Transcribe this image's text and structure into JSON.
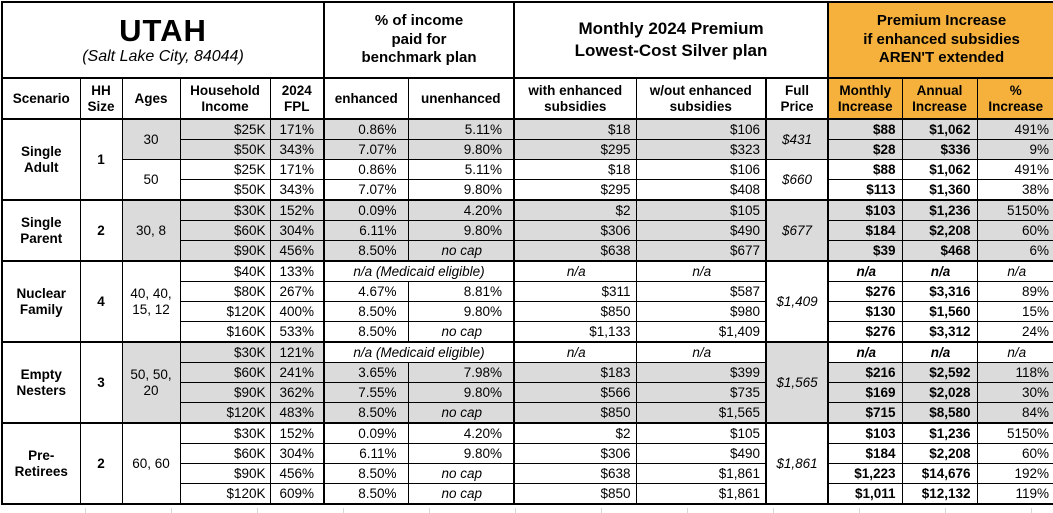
{
  "colors": {
    "orange": "#F6B13C",
    "shade": "#DBDBDB",
    "border": "#000000"
  },
  "title_block": {
    "title": "UTAH",
    "subtitle": "(Salt Lake City, 84044)"
  },
  "section_headers": {
    "income_pct": "% of income\npaid for\nbenchmark plan",
    "premium": "Monthly 2024 Premium\nLowest-Cost Silver plan",
    "increase": "Premium Increase\nif enhanced subsidies\nAREN'T extended"
  },
  "column_headers": {
    "scenario": "Scenario",
    "hh_size": "HH\nSize",
    "ages": "Ages",
    "income": "Household\nIncome",
    "fpl": "2024\nFPL",
    "enhanced": "enhanced",
    "unenhanced": "unenhanced",
    "with_sub": "with enhanced\nsubsidies",
    "without_sub": "w/out enhanced\nsubsidies",
    "full_price": "Full\nPrice",
    "monthly": "Monthly\nIncrease",
    "annual": "Annual\nIncrease",
    "pct": "%\nIncrease"
  },
  "na_label": "n/a",
  "no_cap_label": "no cap",
  "groups": [
    {
      "scenario": "Single\nAdult",
      "hh_size": "1",
      "age_blocks": [
        {
          "ages": "30",
          "shaded": true,
          "full_price": "$431",
          "rows": [
            {
              "income": "$25K",
              "fpl": "171%",
              "enhanced": "0.86%",
              "unenhanced": "5.11%",
              "with_sub": "$18",
              "without_sub": "$106",
              "monthly": "$88",
              "annual": "$1,062",
              "pct": "491%"
            },
            {
              "income": "$50K",
              "fpl": "343%",
              "enhanced": "7.07%",
              "unenhanced": "9.80%",
              "with_sub": "$295",
              "without_sub": "$323",
              "monthly": "$28",
              "annual": "$336",
              "pct": "9%"
            }
          ]
        },
        {
          "ages": "50",
          "shaded": false,
          "full_price": "$660",
          "rows": [
            {
              "income": "$25K",
              "fpl": "171%",
              "enhanced": "0.86%",
              "unenhanced": "5.11%",
              "with_sub": "$18",
              "without_sub": "$106",
              "monthly": "$88",
              "annual": "$1,062",
              "pct": "491%"
            },
            {
              "income": "$50K",
              "fpl": "343%",
              "enhanced": "7.07%",
              "unenhanced": "9.80%",
              "with_sub": "$295",
              "without_sub": "$408",
              "monthly": "$113",
              "annual": "$1,360",
              "pct": "38%"
            }
          ]
        }
      ]
    },
    {
      "scenario": "Single\nParent",
      "hh_size": "2",
      "age_blocks": [
        {
          "ages": "30, 8",
          "shaded": true,
          "full_price": "$677",
          "rows": [
            {
              "income": "$30K",
              "fpl": "152%",
              "enhanced": "0.09%",
              "unenhanced": "4.20%",
              "with_sub": "$2",
              "without_sub": "$105",
              "monthly": "$103",
              "annual": "$1,236",
              "pct": "5150%"
            },
            {
              "income": "$60K",
              "fpl": "304%",
              "enhanced": "6.11%",
              "unenhanced": "9.80%",
              "with_sub": "$306",
              "without_sub": "$490",
              "monthly": "$184",
              "annual": "$2,208",
              "pct": "60%"
            },
            {
              "income": "$90K",
              "fpl": "456%",
              "enhanced": "8.50%",
              "unenhanced": "no cap",
              "with_sub": "$638",
              "without_sub": "$677",
              "monthly": "$39",
              "annual": "$468",
              "pct": "6%"
            }
          ]
        }
      ]
    },
    {
      "scenario": "Nuclear\nFamily",
      "hh_size": "4",
      "age_blocks": [
        {
          "ages": "40, 40,\n15, 12",
          "shaded": false,
          "full_price": "$1,409",
          "rows": [
            {
              "income": "$40K",
              "fpl": "133%",
              "medicaid": true,
              "medicaid_label": "n/a (Medicaid eligible)",
              "with_sub": "n/a",
              "without_sub": "n/a",
              "monthly": "n/a",
              "annual": "n/a",
              "pct": "n/a"
            },
            {
              "income": "$80K",
              "fpl": "267%",
              "enhanced": "4.67%",
              "unenhanced": "8.81%",
              "with_sub": "$311",
              "without_sub": "$587",
              "monthly": "$276",
              "annual": "$3,316",
              "pct": "89%"
            },
            {
              "income": "$120K",
              "fpl": "400%",
              "enhanced": "8.50%",
              "unenhanced": "9.80%",
              "with_sub": "$850",
              "without_sub": "$980",
              "monthly": "$130",
              "annual": "$1,560",
              "pct": "15%"
            },
            {
              "income": "$160K",
              "fpl": "533%",
              "enhanced": "8.50%",
              "unenhanced": "no cap",
              "with_sub": "$1,133",
              "without_sub": "$1,409",
              "monthly": "$276",
              "annual": "$3,312",
              "pct": "24%"
            }
          ]
        }
      ]
    },
    {
      "scenario": "Empty\nNesters",
      "hh_size": "3",
      "age_blocks": [
        {
          "ages": "50, 50,\n20",
          "shaded": true,
          "full_price": "$1,565",
          "rows": [
            {
              "income": "$30K",
              "fpl": "121%",
              "medicaid": true,
              "medicaid_label": "n/a (Medicaid eligible)",
              "with_sub": "n/a",
              "without_sub": "n/a",
              "monthly": "n/a",
              "annual": "n/a",
              "pct": "n/a"
            },
            {
              "income": "$60K",
              "fpl": "241%",
              "enhanced": "3.65%",
              "unenhanced": "7.98%",
              "with_sub": "$183",
              "without_sub": "$399",
              "monthly": "$216",
              "annual": "$2,592",
              "pct": "118%"
            },
            {
              "income": "$90K",
              "fpl": "362%",
              "enhanced": "7.55%",
              "unenhanced": "9.80%",
              "with_sub": "$566",
              "without_sub": "$735",
              "monthly": "$169",
              "annual": "$2,028",
              "pct": "30%"
            },
            {
              "income": "$120K",
              "fpl": "483%",
              "enhanced": "8.50%",
              "unenhanced": "no cap",
              "with_sub": "$850",
              "without_sub": "$1,565",
              "monthly": "$715",
              "annual": "$8,580",
              "pct": "84%"
            }
          ]
        }
      ]
    },
    {
      "scenario": "Pre-\nRetirees",
      "hh_size": "2",
      "age_blocks": [
        {
          "ages": "60, 60",
          "shaded": false,
          "full_price": "$1,861",
          "rows": [
            {
              "income": "$30K",
              "fpl": "152%",
              "enhanced": "0.09%",
              "unenhanced": "4.20%",
              "with_sub": "$2",
              "without_sub": "$105",
              "monthly": "$103",
              "annual": "$1,236",
              "pct": "5150%"
            },
            {
              "income": "$60K",
              "fpl": "304%",
              "enhanced": "6.11%",
              "unenhanced": "9.80%",
              "with_sub": "$306",
              "without_sub": "$490",
              "monthly": "$184",
              "annual": "$2,208",
              "pct": "60%"
            },
            {
              "income": "$90K",
              "fpl": "456%",
              "enhanced": "8.50%",
              "unenhanced": "no cap",
              "with_sub": "$638",
              "without_sub": "$1,861",
              "monthly": "$1,223",
              "annual": "$14,676",
              "pct": "192%"
            },
            {
              "income": "$120K",
              "fpl": "609%",
              "enhanced": "8.50%",
              "unenhanced": "no cap",
              "with_sub": "$850",
              "without_sub": "$1,861",
              "monthly": "$1,011",
              "annual": "$12,132",
              "pct": "119%"
            }
          ]
        }
      ]
    }
  ]
}
